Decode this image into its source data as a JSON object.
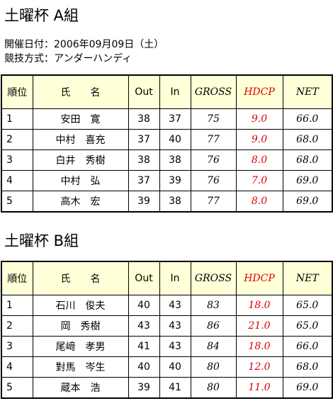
{
  "sections": [
    {
      "title": "土曜杯 A組",
      "info": [
        "開催日付：2006年09月09日（土）",
        "競技方式：アンダーハンディ"
      ],
      "table": {
        "headers": [
          "順位",
          "氏　　名",
          "Out",
          "In",
          "GROSS",
          "HDCP",
          "NET"
        ],
        "rows": [
          [
            "1",
            "安田　寛",
            "38",
            "37",
            "75",
            "9.0",
            "66.0"
          ],
          [
            "2",
            "中村　喜充",
            "37",
            "40",
            "77",
            "9.0",
            "68.0"
          ],
          [
            "3",
            "白井　秀樹",
            "38",
            "38",
            "76",
            "8.0",
            "68.0"
          ],
          [
            "4",
            "中村　弘",
            "37",
            "39",
            "76",
            "7.0",
            "69.0"
          ],
          [
            "5",
            "高木　宏",
            "39",
            "38",
            "77",
            "8.0",
            "69.0"
          ]
        ]
      }
    },
    {
      "title": "土曜杯 B組",
      "info": [],
      "table": {
        "headers": [
          "順位",
          "氏　　名",
          "Out",
          "In",
          "GROSS",
          "HDCP",
          "NET"
        ],
        "rows": [
          [
            "1",
            "石川　俊夫",
            "40",
            "43",
            "83",
            "18.0",
            "65.0"
          ],
          [
            "2",
            "岡　秀樹",
            "43",
            "43",
            "86",
            "21.0",
            "65.0"
          ],
          [
            "3",
            "尾﨑　孝男",
            "41",
            "43",
            "84",
            "18.0",
            "66.0"
          ],
          [
            "4",
            "對馬　岑生",
            "40",
            "40",
            "80",
            "12.0",
            "68.0"
          ],
          [
            "5",
            "蔵本　浩",
            "39",
            "41",
            "80",
            "11.0",
            "69.0"
          ]
        ]
      }
    }
  ]
}
